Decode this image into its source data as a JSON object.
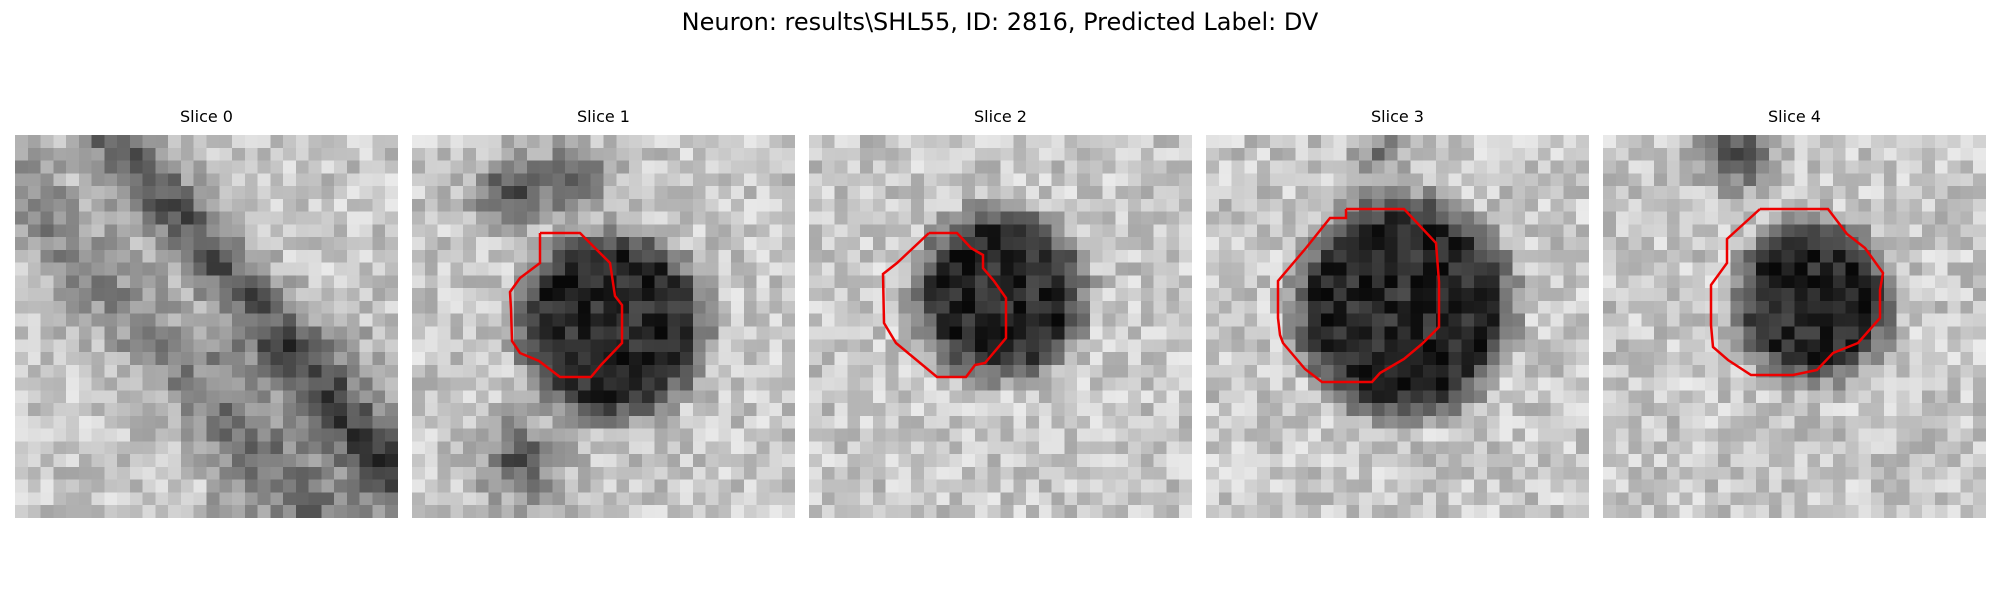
{
  "figure": {
    "title": "Neuron: results\\SHL55, ID: 2816, Predicted Label: DV",
    "contour_color": "#ee0000",
    "image_style": "grayscale pixel patch (30x30)",
    "panels": [
      {
        "title": "Slice 0",
        "has_contour": false,
        "dark_pattern": "diagonal-band"
      },
      {
        "title": "Slice 1",
        "has_contour": true,
        "dark_pattern": "blob"
      },
      {
        "title": "Slice 2",
        "has_contour": true,
        "dark_pattern": "blob"
      },
      {
        "title": "Slice 3",
        "has_contour": true,
        "dark_pattern": "blob"
      },
      {
        "title": "Slice 4",
        "has_contour": true,
        "dark_pattern": "blob"
      }
    ]
  }
}
